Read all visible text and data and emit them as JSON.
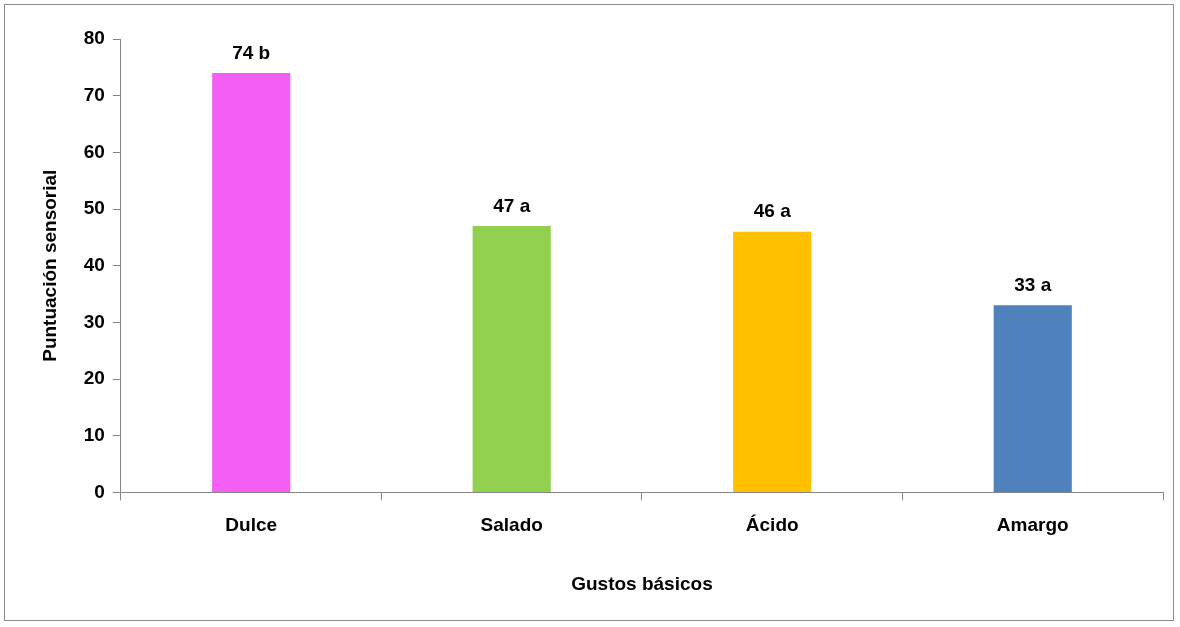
{
  "chart_data": {
    "type": "bar",
    "xlabel": "Gustos básicos",
    "ylabel": "Puntuación sensorial",
    "categories": [
      "Dulce",
      "Salado",
      "Ácido",
      "Amargo"
    ],
    "values": [
      74,
      47,
      46,
      33
    ],
    "colors": [
      "#f25ff2",
      "#92d050",
      "#ffc000",
      "#4f81bd"
    ],
    "value_labels": [
      "74 b",
      "47 a",
      "46 a",
      "33 a"
    ],
    "ylim": [
      0,
      80
    ],
    "yticks": [
      0,
      10,
      20,
      30,
      40,
      50,
      60,
      70,
      80
    ],
    "legend": false
  }
}
